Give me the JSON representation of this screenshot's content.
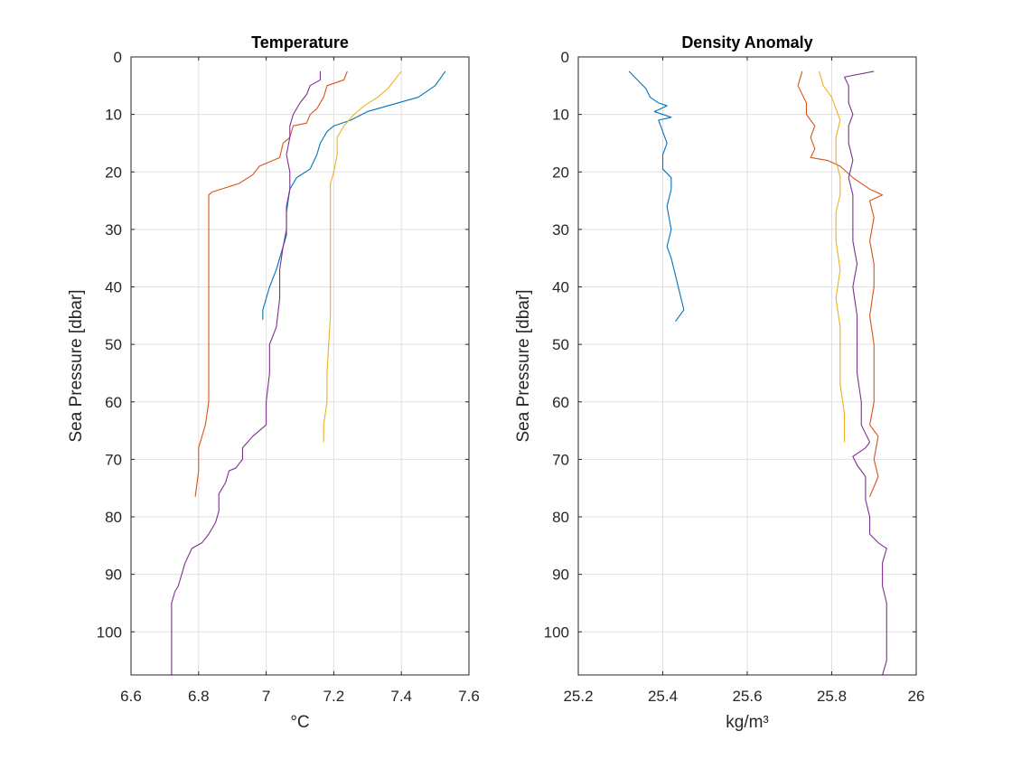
{
  "chart_data": [
    {
      "type": "line",
      "title": "Temperature",
      "xlabel": "°C",
      "ylabel": "Sea Pressure [dbar]",
      "xlim": [
        6.6,
        7.6
      ],
      "ylim": [
        0,
        107.5
      ],
      "y_reversed": true,
      "x_ticks": [
        "6.6",
        "6.8",
        "7",
        "7.2",
        "7.4",
        "7.6"
      ],
      "y_ticks": [
        "0",
        "10",
        "20",
        "30",
        "40",
        "50",
        "60",
        "70",
        "80",
        "90",
        "100"
      ],
      "grid": true,
      "colors": {
        "blue": "#0072BD",
        "orange": "#D95319",
        "yellow": "#EDB120",
        "purple": "#7E2F8E"
      },
      "series": [
        {
          "color": "blue",
          "points": [
            [
              7.53,
              2.5
            ],
            [
              7.5,
              5
            ],
            [
              7.45,
              7
            ],
            [
              7.36,
              8.5
            ],
            [
              7.3,
              9.5
            ],
            [
              7.25,
              11
            ],
            [
              7.2,
              12
            ],
            [
              7.18,
              13
            ],
            [
              7.16,
              15
            ],
            [
              7.15,
              17
            ],
            [
              7.13,
              19.5
            ],
            [
              7.09,
              21
            ],
            [
              7.07,
              23
            ],
            [
              7.06,
              27
            ],
            [
              7.06,
              31
            ],
            [
              7.04,
              35
            ],
            [
              7.03,
              37
            ],
            [
              7.01,
              40
            ],
            [
              7.0,
              42
            ],
            [
              6.99,
              44
            ],
            [
              6.99,
              45.7
            ]
          ]
        },
        {
          "color": "orange",
          "points": [
            [
              7.24,
              2.5
            ],
            [
              7.23,
              4
            ],
            [
              7.18,
              5
            ],
            [
              7.17,
              7
            ],
            [
              7.15,
              9
            ],
            [
              7.13,
              10
            ],
            [
              7.12,
              11.5
            ],
            [
              7.08,
              12
            ],
            [
              7.07,
              14
            ],
            [
              7.05,
              15
            ],
            [
              7.04,
              17.5
            ],
            [
              6.98,
              19
            ],
            [
              6.96,
              20.5
            ],
            [
              6.92,
              22
            ],
            [
              6.84,
              23.5
            ],
            [
              6.83,
              24
            ],
            [
              6.83,
              30
            ],
            [
              6.83,
              40
            ],
            [
              6.83,
              50
            ],
            [
              6.83,
              60
            ],
            [
              6.82,
              64
            ],
            [
              6.81,
              66
            ],
            [
              6.8,
              68
            ],
            [
              6.8,
              72
            ],
            [
              6.79,
              76.5
            ]
          ]
        },
        {
          "color": "yellow",
          "points": [
            [
              7.4,
              2.5
            ],
            [
              7.38,
              4
            ],
            [
              7.36,
              5.5
            ],
            [
              7.33,
              7
            ],
            [
              7.29,
              8.5
            ],
            [
              7.26,
              10
            ],
            [
              7.23,
              12
            ],
            [
              7.22,
              13
            ],
            [
              7.21,
              14
            ],
            [
              7.21,
              17
            ],
            [
              7.2,
              20
            ],
            [
              7.19,
              22
            ],
            [
              7.19,
              25
            ],
            [
              7.19,
              35
            ],
            [
              7.19,
              45
            ],
            [
              7.18,
              55
            ],
            [
              7.18,
              60
            ],
            [
              7.17,
              64
            ],
            [
              7.17,
              67
            ]
          ]
        },
        {
          "color": "purple",
          "points": [
            [
              7.16,
              2.5
            ],
            [
              7.16,
              4
            ],
            [
              7.13,
              5
            ],
            [
              7.12,
              6.5
            ],
            [
              7.1,
              8
            ],
            [
              7.08,
              10
            ],
            [
              7.07,
              12
            ],
            [
              7.07,
              14
            ],
            [
              7.06,
              17
            ],
            [
              7.07,
              20
            ],
            [
              7.07,
              23
            ],
            [
              7.06,
              26
            ],
            [
              7.06,
              30
            ],
            [
              7.05,
              33
            ],
            [
              7.04,
              37
            ],
            [
              7.04,
              42
            ],
            [
              7.03,
              47
            ],
            [
              7.01,
              50
            ],
            [
              7.01,
              55
            ],
            [
              7.0,
              60
            ],
            [
              7.0,
              64
            ],
            [
              6.98,
              65
            ],
            [
              6.96,
              66
            ],
            [
              6.93,
              68
            ],
            [
              6.93,
              70
            ],
            [
              6.91,
              71.5
            ],
            [
              6.89,
              72
            ],
            [
              6.88,
              74
            ],
            [
              6.86,
              76
            ],
            [
              6.86,
              79
            ],
            [
              6.85,
              81
            ],
            [
              6.83,
              83
            ],
            [
              6.81,
              84.5
            ],
            [
              6.78,
              85.5
            ],
            [
              6.76,
              88
            ],
            [
              6.75,
              90
            ],
            [
              6.74,
              92
            ],
            [
              6.73,
              93
            ],
            [
              6.72,
              95
            ],
            [
              6.72,
              100
            ],
            [
              6.72,
              107.5
            ]
          ]
        }
      ]
    },
    {
      "type": "line",
      "title": "Density Anomaly",
      "xlabel": "kg/m³",
      "ylabel": "Sea Pressure [dbar]",
      "xlim": [
        25.2,
        26.0
      ],
      "ylim": [
        0,
        107.5
      ],
      "y_reversed": true,
      "x_ticks": [
        "25.2",
        "25.4",
        "25.6",
        "25.8",
        "26"
      ],
      "y_ticks": [
        "0",
        "10",
        "20",
        "30",
        "40",
        "50",
        "60",
        "70",
        "80",
        "90",
        "100"
      ],
      "grid": true,
      "colors": {
        "blue": "#0072BD",
        "orange": "#D95319",
        "yellow": "#EDB120",
        "purple": "#7E2F8E"
      },
      "series": [
        {
          "color": "blue",
          "points": [
            [
              25.32,
              2.5
            ],
            [
              25.34,
              4
            ],
            [
              25.36,
              5.5
            ],
            [
              25.37,
              7
            ],
            [
              25.39,
              8
            ],
            [
              25.41,
              8.5
            ],
            [
              25.38,
              9.5
            ],
            [
              25.42,
              10.5
            ],
            [
              25.39,
              11
            ],
            [
              25.4,
              13
            ],
            [
              25.41,
              15
            ],
            [
              25.4,
              17
            ],
            [
              25.4,
              19.5
            ],
            [
              25.42,
              21
            ],
            [
              25.42,
              23
            ],
            [
              25.41,
              26
            ],
            [
              25.42,
              30
            ],
            [
              25.41,
              33
            ],
            [
              25.42,
              35
            ],
            [
              25.43,
              38
            ],
            [
              25.44,
              41
            ],
            [
              25.45,
              44
            ],
            [
              25.43,
              46
            ]
          ]
        },
        {
          "color": "orange",
          "points": [
            [
              25.73,
              2.5
            ],
            [
              25.72,
              5
            ],
            [
              25.74,
              8
            ],
            [
              25.74,
              10
            ],
            [
              25.76,
              12
            ],
            [
              25.75,
              14
            ],
            [
              25.76,
              16
            ],
            [
              25.75,
              17.5
            ],
            [
              25.79,
              18
            ],
            [
              25.82,
              19
            ],
            [
              25.85,
              21
            ],
            [
              25.89,
              23
            ],
            [
              25.92,
              24
            ],
            [
              25.89,
              25
            ],
            [
              25.9,
              28
            ],
            [
              25.89,
              32
            ],
            [
              25.9,
              36
            ],
            [
              25.9,
              40
            ],
            [
              25.89,
              45
            ],
            [
              25.9,
              50
            ],
            [
              25.9,
              55
            ],
            [
              25.9,
              60
            ],
            [
              25.89,
              64
            ],
            [
              25.91,
              66
            ],
            [
              25.9,
              70
            ],
            [
              25.91,
              73
            ],
            [
              25.89,
              76.5
            ]
          ]
        },
        {
          "color": "yellow",
          "points": [
            [
              25.77,
              2.5
            ],
            [
              25.78,
              5
            ],
            [
              25.8,
              7
            ],
            [
              25.81,
              9
            ],
            [
              25.82,
              11
            ],
            [
              25.81,
              14
            ],
            [
              25.81,
              18
            ],
            [
              25.82,
              21
            ],
            [
              25.82,
              24
            ],
            [
              25.81,
              27
            ],
            [
              25.81,
              32
            ],
            [
              25.82,
              37
            ],
            [
              25.81,
              42
            ],
            [
              25.82,
              47
            ],
            [
              25.82,
              52
            ],
            [
              25.82,
              57
            ],
            [
              25.83,
              62
            ],
            [
              25.83,
              67
            ]
          ]
        },
        {
          "color": "purple",
          "points": [
            [
              25.9,
              2.5
            ],
            [
              25.83,
              3.5
            ],
            [
              25.84,
              5
            ],
            [
              25.84,
              8
            ],
            [
              25.85,
              10
            ],
            [
              25.84,
              12
            ],
            [
              25.84,
              15
            ],
            [
              25.85,
              18
            ],
            [
              25.84,
              21
            ],
            [
              25.85,
              24
            ],
            [
              25.85,
              28
            ],
            [
              25.85,
              32
            ],
            [
              25.86,
              36
            ],
            [
              25.85,
              40
            ],
            [
              25.86,
              45
            ],
            [
              25.86,
              50
            ],
            [
              25.86,
              55
            ],
            [
              25.87,
              60
            ],
            [
              25.87,
              64
            ],
            [
              25.89,
              67
            ],
            [
              25.88,
              68
            ],
            [
              25.85,
              69.5
            ],
            [
              25.86,
              71
            ],
            [
              25.88,
              73
            ],
            [
              25.88,
              77
            ],
            [
              25.89,
              80
            ],
            [
              25.89,
              83
            ],
            [
              25.91,
              84.5
            ],
            [
              25.93,
              85.5
            ],
            [
              25.92,
              88
            ],
            [
              25.92,
              92
            ],
            [
              25.93,
              95
            ],
            [
              25.93,
              100
            ],
            [
              25.93,
              105
            ],
            [
              25.92,
              107.5
            ]
          ]
        }
      ]
    }
  ]
}
